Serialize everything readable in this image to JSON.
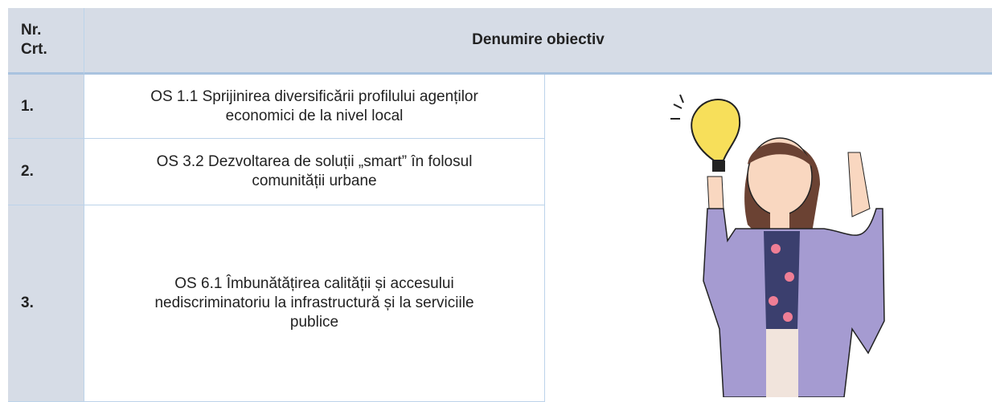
{
  "header": {
    "columns": [
      "Nr. Crt.",
      "Denumire obiectiv"
    ]
  },
  "table": {
    "rows": [
      [
        "1.",
        "OS 1.1 Sprijinirea diversificării profilului agenților economici de la nivel local"
      ],
      [
        "2.",
        "OS 3.2 Dezvoltarea de soluții „smart” în folosul comunității urbane"
      ],
      [
        "3.",
        "OS 6.1 Îmbunătățirea calității și accesului nediscriminatoriu la infrastructură și la serviciile publice"
      ]
    ]
  }
}
